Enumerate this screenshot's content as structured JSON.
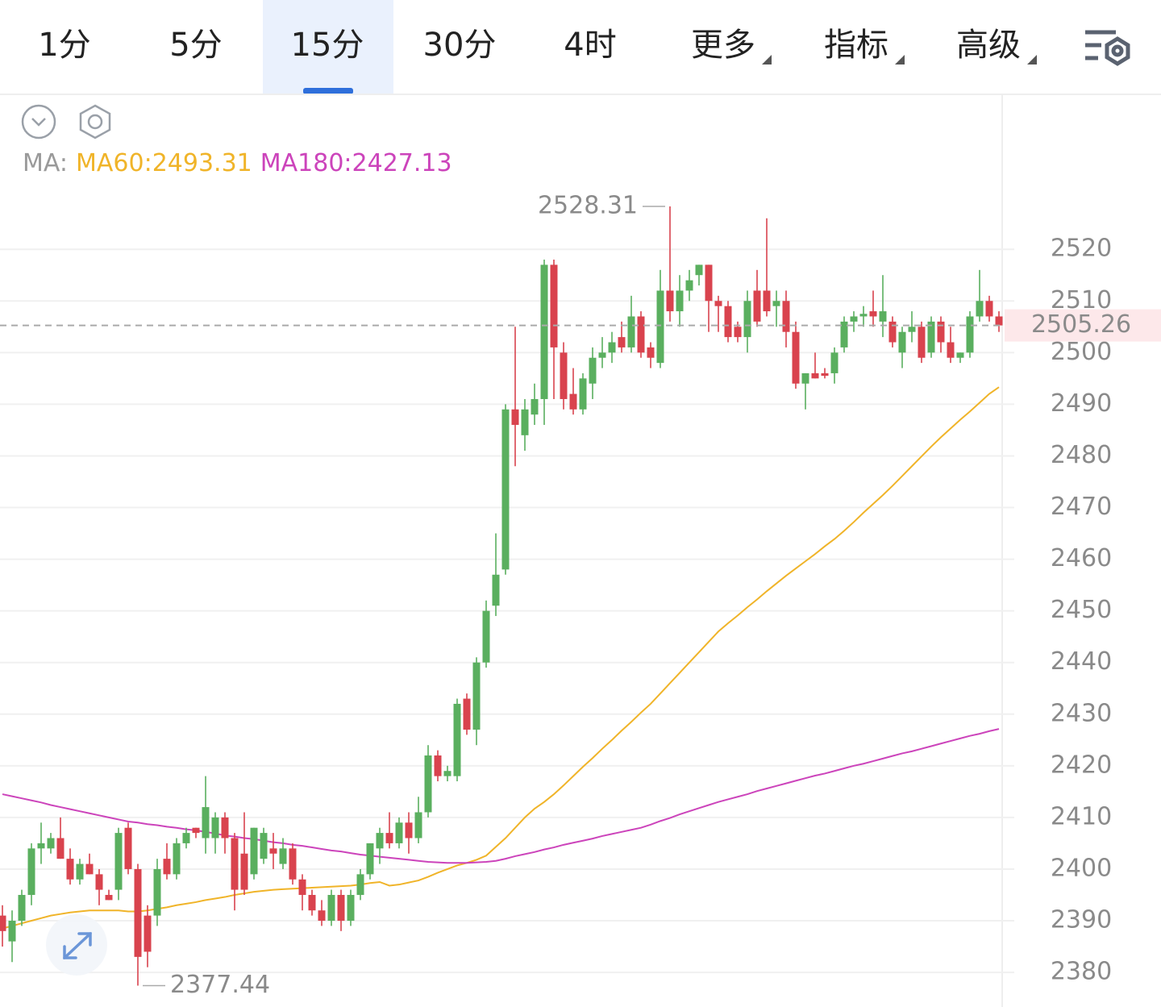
{
  "tabs": [
    "1分",
    "5分",
    "15分",
    "30分",
    "4时",
    "更多",
    "指标",
    "高级"
  ],
  "active_tab": 2,
  "chart_data": {
    "type": "candlestick",
    "legend_prefix": "MA:",
    "up_color": "#5aaf5f",
    "down_color": "#d9434e",
    "ylim": [
      2373.3,
      2550
    ],
    "yticks": [
      2380,
      2390,
      2400,
      2410,
      2420,
      2430,
      2440,
      2450,
      2460,
      2470,
      2480,
      2490,
      2500,
      2510,
      2520
    ],
    "grid": true,
    "max_index": 69,
    "min_index": 14,
    "open": [
      2391,
      2386,
      2390,
      2395,
      2404,
      2404,
      2406,
      2402,
      2398,
      2401,
      2399,
      2395,
      2396,
      2408,
      2400,
      2391,
      2391,
      2402,
      2399,
      2405,
      2408,
      2406,
      2406,
      2410,
      2406,
      2403,
      2399,
      2402,
      2404,
      2401,
      2404,
      2398,
      2395,
      2392,
      2390,
      2395,
      2390,
      2395,
      2399,
      2404,
      2407,
      2405,
      2409,
      2406,
      2411,
      2422,
      2418,
      2418,
      2433,
      2427,
      2440,
      2451,
      2458,
      2489,
      2484,
      2488,
      2491,
      2517,
      2500,
      2492,
      2489,
      2494,
      2499,
      2500,
      2503,
      2501,
      2507,
      2501,
      2498,
      2512,
      2508,
      2512,
      2515,
      2517,
      2510,
      2509,
      2505,
      2503,
      2512,
      2512,
      2509,
      2510,
      2504,
      2494,
      2496,
      2496,
      2496,
      2501,
      2506,
      2507,
      2508,
      2506,
      2506,
      2500,
      2504,
      2505,
      2500,
      2506,
      2502,
      2499,
      2500,
      2507,
      2510,
      2507
    ],
    "high": [
      2393,
      2392,
      2396,
      2405,
      2409,
      2407,
      2410,
      2404,
      2402,
      2403,
      2400,
      2396,
      2408,
      2409,
      2401,
      2393,
      2402,
      2405,
      2406,
      2408,
      2408,
      2418,
      2411,
      2411,
      2407,
      2411,
      2408,
      2408,
      2407,
      2406,
      2405,
      2399,
      2396,
      2394,
      2396,
      2396,
      2396,
      2400,
      2405,
      2408,
      2411,
      2410,
      2411,
      2414,
      2424,
      2423,
      2420,
      2433,
      2434,
      2441,
      2452,
      2465,
      2490,
      2505,
      2491,
      2494,
      2518,
      2518,
      2502,
      2497,
      2496,
      2501,
      2503,
      2504,
      2506,
      2511,
      2508,
      2502,
      2516,
      2528.31,
      2515,
      2516,
      2517,
      2517,
      2511,
      2510,
      2506,
      2512,
      2516,
      2526,
      2512,
      2512,
      2506,
      2496,
      2500,
      2497,
      2501,
      2507,
      2508,
      2509,
      2512,
      2515,
      2507,
      2505,
      2508,
      2506,
      2507,
      2507,
      2505,
      2500,
      2508,
      2516,
      2511,
      2508
    ],
    "low": [
      2385,
      2382,
      2389,
      2393,
      2401,
      2403,
      2402,
      2397,
      2397,
      2399,
      2393,
      2394,
      2394,
      2399,
      2377.44,
      2381,
      2389,
      2398,
      2398,
      2404,
      2406,
      2403,
      2403,
      2403,
      2392,
      2395,
      2398,
      2401,
      2400,
      2400,
      2397,
      2392,
      2391,
      2389,
      2389,
      2388,
      2389,
      2394,
      2398,
      2401,
      2404,
      2404,
      2403,
      2405,
      2410,
      2417,
      2417,
      2417,
      2426,
      2424,
      2439,
      2449,
      2457,
      2478,
      2481,
      2486,
      2486,
      2491,
      2489,
      2488,
      2488,
      2491,
      2497,
      2498,
      2500,
      2500,
      2499,
      2497,
      2497,
      2506,
      2505,
      2510,
      2513,
      2504,
      2504,
      2502,
      2502,
      2500,
      2505,
      2507,
      2505,
      2501,
      2493,
      2489,
      2495,
      2495,
      2494,
      2500,
      2504,
      2505,
      2505,
      2503,
      2501,
      2497,
      2502,
      2498,
      2499,
      2500,
      2498,
      2498,
      2499,
      2506,
      2506,
      2504
    ],
    "close": [
      2388,
      2390,
      2395,
      2404,
      2405,
      2406,
      2402,
      2398,
      2401,
      2399,
      2396,
      2394,
      2407,
      2400,
      2383,
      2384,
      2400,
      2399,
      2405,
      2407,
      2407,
      2412,
      2410,
      2406,
      2396,
      2396,
      2408,
      2407,
      2403,
      2404,
      2398,
      2395,
      2392,
      2390,
      2395,
      2390,
      2395,
      2399,
      2405,
      2407,
      2405,
      2409,
      2406,
      2411,
      2422,
      2418,
      2419,
      2432,
      2427,
      2440,
      2450,
      2457,
      2489,
      2486,
      2489,
      2491,
      2517,
      2501,
      2491,
      2489,
      2495,
      2499,
      2500,
      2502,
      2501,
      2507,
      2500,
      2499,
      2512,
      2508,
      2512,
      2514,
      2517,
      2510,
      2509,
      2503,
      2503,
      2510,
      2506,
      2508,
      2510,
      2504,
      2494,
      2496,
      2495,
      2495.5,
      2500,
      2506,
      2507,
      2507.5,
      2507,
      2508,
      2502,
      2504,
      2505,
      2499,
      2506,
      2502,
      2499,
      2500,
      2507,
      2510,
      2507,
      2505.26
    ],
    "series": [
      {
        "name": "MA60",
        "label": "MA60:2493.31",
        "color": "#f0b429",
        "values": [
          2388.5,
          2389,
          2389.5,
          2390,
          2390.5,
          2391,
          2391.3,
          2391.6,
          2391.8,
          2392,
          2392,
          2392,
          2392,
          2391.8,
          2391.8,
          2392,
          2392.3,
          2392.6,
          2393,
          2393.3,
          2393.6,
          2394,
          2394.3,
          2394.6,
          2395,
          2395.3,
          2395.6,
          2395.8,
          2396,
          2396.1,
          2396.2,
          2396.3,
          2396.4,
          2396.5,
          2396.6,
          2396.7,
          2396.8,
          2397,
          2397.3,
          2397.5,
          2396.8,
          2397,
          2397.4,
          2397.8,
          2398.5,
          2399.3,
          2400,
          2400.7,
          2401.2,
          2401.8,
          2402.6,
          2404.3,
          2406,
          2408,
          2410,
          2411.7,
          2413,
          2414.5,
          2416.2,
          2418,
          2419.8,
          2421.5,
          2423.3,
          2425,
          2426.8,
          2428.5,
          2430.3,
          2432,
          2434,
          2436,
          2438,
          2440,
          2442,
          2444,
          2446,
          2447.6,
          2449.1,
          2450.7,
          2452.2,
          2453.8,
          2455.3,
          2456.8,
          2458.2,
          2459.6,
          2461,
          2462.5,
          2463.9,
          2465.5,
          2467.2,
          2469,
          2470.7,
          2472.4,
          2474.2,
          2476.1,
          2478,
          2479.9,
          2481.8,
          2483.6,
          2485.3,
          2487,
          2488.6,
          2490.3,
          2492,
          2493.31
        ]
      },
      {
        "name": "MA180",
        "label": "MA180:2427.13",
        "color": "#cc44bb",
        "values": [
          2414.5,
          2414.1,
          2413.7,
          2413.3,
          2412.9,
          2412.4,
          2412,
          2411.6,
          2411.2,
          2410.8,
          2410.4,
          2410,
          2409.6,
          2409.2,
          2409,
          2408.7,
          2408.5,
          2408.2,
          2408,
          2407.7,
          2407.5,
          2407.2,
          2406.9,
          2406.5,
          2406.3,
          2406,
          2405.8,
          2405.5,
          2405.2,
          2405,
          2404.7,
          2404.5,
          2404.2,
          2403.9,
          2403.6,
          2403.4,
          2403.1,
          2402.8,
          2402.6,
          2402.4,
          2402.2,
          2402,
          2401.8,
          2401.6,
          2401.4,
          2401.3,
          2401.2,
          2401.2,
          2401.2,
          2401.3,
          2401.4,
          2401.6,
          2402,
          2402.5,
          2402.9,
          2403.3,
          2403.8,
          2404.2,
          2404.7,
          2405.1,
          2405.5,
          2405.9,
          2406.4,
          2406.8,
          2407.2,
          2407.6,
          2408,
          2408.6,
          2409.3,
          2409.9,
          2410.6,
          2411.2,
          2411.8,
          2412.4,
          2413,
          2413.5,
          2414,
          2414.5,
          2415.1,
          2415.6,
          2416.1,
          2416.6,
          2417.1,
          2417.6,
          2418.1,
          2418.5,
          2419,
          2419.5,
          2420,
          2420.4,
          2420.9,
          2421.4,
          2421.9,
          2422.4,
          2422.8,
          2423.3,
          2423.8,
          2424.3,
          2424.8,
          2425.3,
          2425.8,
          2426.2,
          2426.7,
          2427.13
        ]
      }
    ]
  }
}
